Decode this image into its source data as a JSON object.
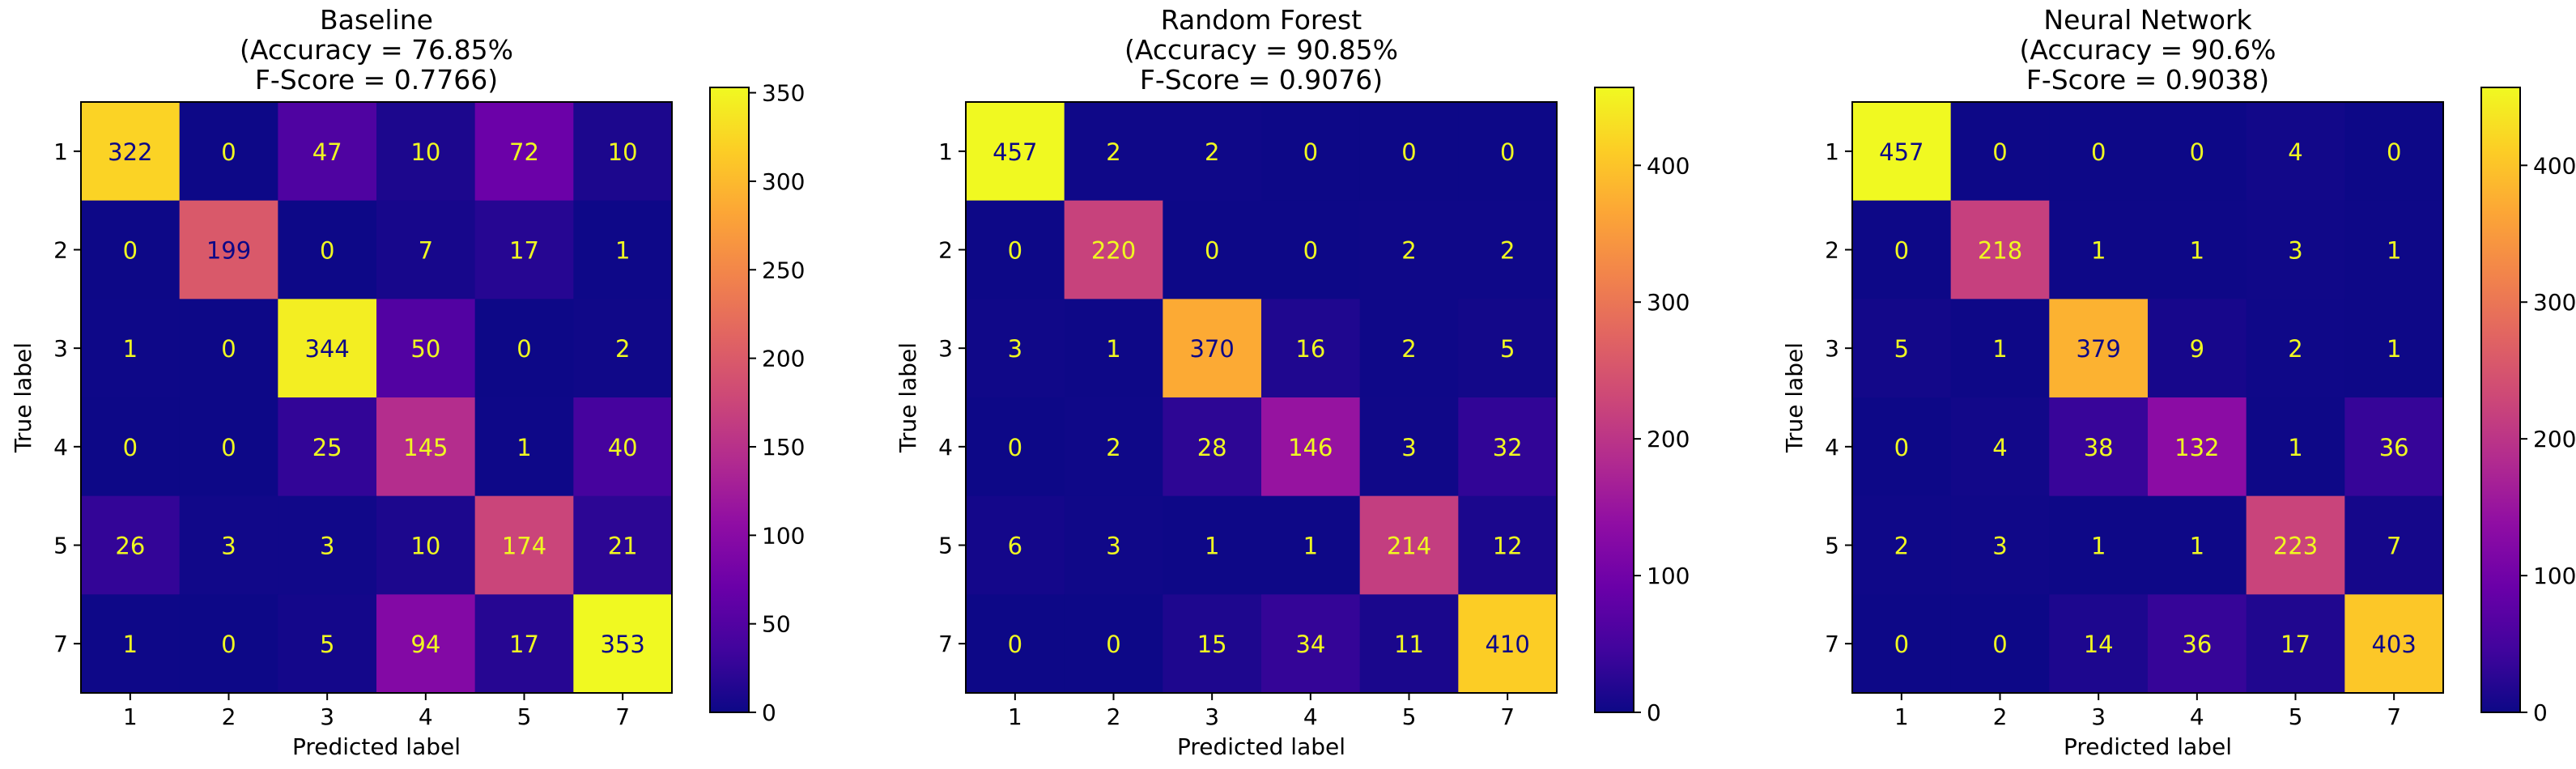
{
  "chart_data": [
    {
      "type": "heatmap",
      "title_lines": [
        "Baseline",
        "(Accuracy = 76.85%",
        "F-Score = 0.7766)"
      ],
      "xlabel": "Predicted label",
      "ylabel": "True label",
      "x_ticks": [
        "1",
        "2",
        "3",
        "4",
        "5",
        "7"
      ],
      "y_ticks": [
        "1",
        "2",
        "3",
        "4",
        "5",
        "7"
      ],
      "matrix": [
        [
          322,
          0,
          47,
          10,
          72,
          10
        ],
        [
          0,
          199,
          0,
          7,
          17,
          1
        ],
        [
          1,
          0,
          344,
          50,
          0,
          2
        ],
        [
          0,
          0,
          25,
          145,
          1,
          40
        ],
        [
          26,
          3,
          3,
          10,
          174,
          21
        ],
        [
          1,
          0,
          5,
          94,
          17,
          353
        ]
      ],
      "colormap": "plasma",
      "colorbar_ticks": [
        0,
        50,
        100,
        150,
        200,
        250,
        300,
        350
      ],
      "vmin": 0,
      "vmax": 353
    },
    {
      "type": "heatmap",
      "title_lines": [
        "Random Forest",
        "(Accuracy = 90.85%",
        "F-Score = 0.9076)"
      ],
      "xlabel": "Predicted label",
      "ylabel": "True label",
      "x_ticks": [
        "1",
        "2",
        "3",
        "4",
        "5",
        "7"
      ],
      "y_ticks": [
        "1",
        "2",
        "3",
        "4",
        "5",
        "7"
      ],
      "matrix": [
        [
          457,
          2,
          2,
          0,
          0,
          0
        ],
        [
          0,
          220,
          0,
          0,
          2,
          2
        ],
        [
          3,
          1,
          370,
          16,
          2,
          5
        ],
        [
          0,
          2,
          28,
          146,
          3,
          32
        ],
        [
          6,
          3,
          1,
          1,
          214,
          12
        ],
        [
          0,
          0,
          15,
          34,
          11,
          410
        ]
      ],
      "colormap": "plasma",
      "colorbar_ticks": [
        0,
        100,
        200,
        300,
        400
      ],
      "vmin": 0,
      "vmax": 457
    },
    {
      "type": "heatmap",
      "title_lines": [
        "Neural Network",
        "(Accuracy = 90.6%",
        "F-Score = 0.9038)"
      ],
      "xlabel": "Predicted label",
      "ylabel": "True label",
      "x_ticks": [
        "1",
        "2",
        "3",
        "4",
        "5",
        "7"
      ],
      "y_ticks": [
        "1",
        "2",
        "3",
        "4",
        "5",
        "7"
      ],
      "matrix": [
        [
          457,
          0,
          0,
          0,
          4,
          0
        ],
        [
          0,
          218,
          1,
          1,
          3,
          1
        ],
        [
          5,
          1,
          379,
          9,
          2,
          1
        ],
        [
          0,
          4,
          38,
          132,
          1,
          36
        ],
        [
          2,
          3,
          1,
          1,
          223,
          7
        ],
        [
          0,
          0,
          14,
          36,
          17,
          403
        ]
      ],
      "colormap": "plasma",
      "colorbar_ticks": [
        0,
        100,
        200,
        300,
        400
      ],
      "vmin": 0,
      "vmax": 457
    }
  ]
}
